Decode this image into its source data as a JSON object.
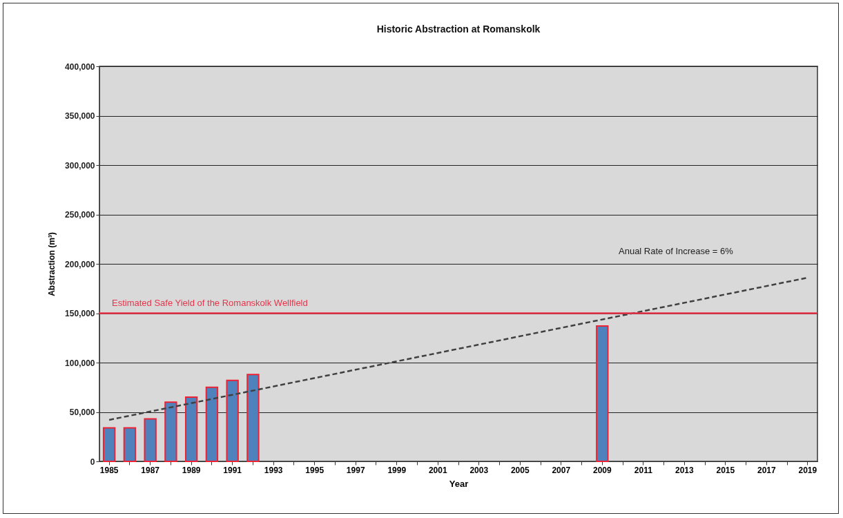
{
  "chart_data": {
    "type": "bar",
    "title": "Historic Abstraction at Romanskolk",
    "xlabel": "Year",
    "ylabel": "Abstraction (m³)",
    "categories": [
      "1985",
      null,
      "1987",
      null,
      "1989",
      null,
      "1991",
      null,
      "1993",
      null,
      "1995",
      null,
      "1997",
      null,
      "1999",
      null,
      "2001",
      null,
      "2003",
      null,
      "2005",
      null,
      "2007",
      null,
      "2009",
      null,
      "2011",
      null,
      "2013",
      null,
      "2015",
      null,
      "2017",
      null,
      "2019"
    ],
    "series": [
      {
        "color": "#4f81bd",
        "values": [
          34000,
          34000,
          43000,
          60000,
          65000,
          75000,
          82000,
          88000,
          null,
          null,
          null,
          null,
          null,
          null,
          null,
          null,
          null,
          null,
          null,
          null,
          null,
          null,
          null,
          null,
          137000,
          null,
          null,
          null,
          null,
          null,
          null,
          null,
          null,
          null,
          null
        ]
      },
      {
        "type": "line",
        "color": "#404040",
        "line_style": "dashed",
        "marker": "none",
        "values": [
          42000,
          null,
          null,
          null,
          null,
          null,
          null,
          null,
          null,
          null,
          null,
          null,
          null,
          null,
          null,
          null,
          null,
          null,
          null,
          null,
          null,
          null,
          null,
          null,
          null,
          null,
          null,
          null,
          null,
          null,
          null,
          null,
          null,
          null,
          186000
        ]
      }
    ],
    "ylim": [
      0,
      400000
    ],
    "yticks": [
      0,
      {
        "value": 50000,
        "label": "50,000"
      },
      {
        "value": 100000,
        "label": "100,000"
      },
      {
        "value": 150000,
        "label": "150,000"
      },
      {
        "value": 200000,
        "label": "200,000"
      },
      {
        "value": 250000,
        "label": "250,000"
      },
      {
        "value": 300000,
        "label": "300,000"
      },
      {
        "value": 350000,
        "label": "350,000"
      },
      {
        "value": 400000,
        "label": "400,000"
      }
    ],
    "grid": "y",
    "legend": false,
    "ref_lines": [
      {
        "axis": "y",
        "value": 150000,
        "label": "Estimated Safe Yield of the Romanskolk Wellfield",
        "color": "#e8344a"
      }
    ],
    "annotations": [
      "Anual Rate of Increase = 6%"
    ]
  }
}
